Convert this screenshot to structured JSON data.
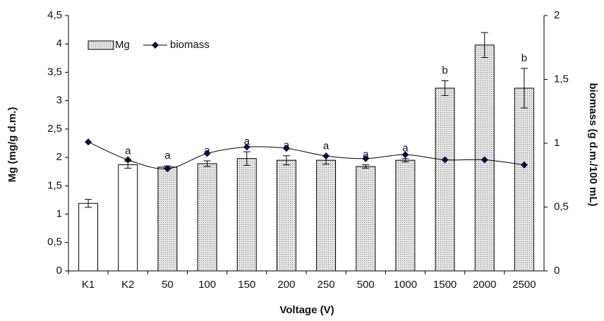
{
  "chart_data": {
    "type": "bar-line",
    "xlabel": "Voltage (V)",
    "ylabel": "Mg (mg/g d.m.)",
    "y2label": "biomass (g d.m./100 mL)",
    "categories": [
      "K1",
      "K2",
      "50",
      "100",
      "150",
      "200",
      "250",
      "500",
      "1000",
      "1500",
      "2000",
      "2500"
    ],
    "series": [
      {
        "name": "Mg",
        "type": "bar",
        "color": "#d9d9d9",
        "values": [
          1.19,
          1.87,
          1.83,
          1.89,
          1.98,
          1.95,
          1.95,
          1.84,
          1.95,
          3.22,
          3.98,
          3.22
        ],
        "errors": [
          0.07,
          0.06,
          0.02,
          0.05,
          0.12,
          0.08,
          0.07,
          0.03,
          0.03,
          0.13,
          0.22,
          0.35
        ],
        "dotted": [
          false,
          false,
          true,
          true,
          true,
          true,
          true,
          true,
          true,
          true,
          true,
          true
        ],
        "annotations": [
          null,
          "a",
          "a",
          "a",
          "a",
          "a",
          "a",
          "a",
          "a",
          "b",
          null,
          "b"
        ]
      },
      {
        "name": "biomass",
        "type": "line",
        "axis": "y2",
        "color": "#0a0a3c",
        "values": [
          1.01,
          0.87,
          0.8,
          0.92,
          0.97,
          0.96,
          0.9,
          0.88,
          0.91,
          0.87,
          0.87,
          0.83
        ]
      }
    ],
    "ylim": [
      0,
      4.5
    ],
    "yticks": [
      0,
      {
        "value": 0.5,
        "label": "0,5"
      },
      1,
      {
        "value": 1.5,
        "label": "1,5"
      },
      2,
      {
        "value": 2.5,
        "label": "2,5"
      },
      3,
      {
        "value": 3.5,
        "label": "3,5"
      },
      4,
      {
        "value": 4.5,
        "label": "4,5"
      }
    ],
    "y2lim": [
      0,
      2
    ],
    "y2ticks": [
      0,
      {
        "value": 0.5,
        "label": "0,5"
      },
      1,
      {
        "value": 1.5,
        "label": "1,5"
      },
      2
    ],
    "legend": "top-left"
  }
}
